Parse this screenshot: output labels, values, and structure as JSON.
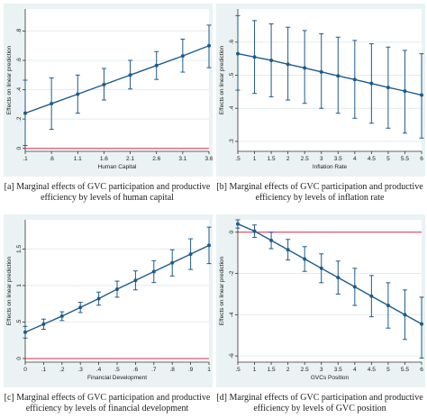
{
  "chart_data": [
    {
      "type": "line",
      "ylabel": "Effects on linear prediction",
      "xlabel": "Human Capital",
      "x_ticks": [
        ".1",
        ".6",
        "1.1",
        "1.6",
        "2.1",
        "2.6",
        "3.1",
        "3.6"
      ],
      "xlim": [
        0.1,
        3.6
      ],
      "ylim": [
        -0.02,
        0.95
      ],
      "y_ticks": [
        0,
        0.2,
        0.4,
        0.6,
        0.8
      ],
      "y_tick_labels": [
        "0",
        ".2",
        ".4",
        ".6",
        ".8"
      ],
      "reference_line": 0,
      "series": [
        {
          "x": [
            0.1,
            0.6,
            1.1,
            1.6,
            2.1,
            2.6,
            3.1,
            3.6
          ],
          "y": [
            0.24,
            0.305,
            0.37,
            0.435,
            0.5,
            0.565,
            0.63,
            0.7
          ],
          "lower": [
            0.02,
            0.13,
            0.24,
            0.33,
            0.405,
            0.47,
            0.52,
            0.55
          ],
          "upper": [
            0.465,
            0.48,
            0.5,
            0.545,
            0.6,
            0.66,
            0.745,
            0.84
          ]
        }
      ],
      "caption": "[a] Marginal effects of GVC participation and productive efficiency by levels of human capital"
    },
    {
      "type": "line",
      "ylabel": "Effects on linear prediction",
      "xlabel": "Inflation Rate",
      "x_ticks": [
        ".5",
        "1",
        "1.5",
        "2",
        "2.5",
        "3",
        "3.5",
        "4",
        "4.5",
        "5",
        "5.5",
        "6"
      ],
      "xlim": [
        0.5,
        6
      ],
      "ylim": [
        0.27,
        0.7
      ],
      "y_ticks": [
        0.3,
        0.4,
        0.5,
        0.6
      ],
      "y_tick_labels": [
        ".3",
        ".4",
        ".5",
        ".6"
      ],
      "series": [
        {
          "x": [
            0.5,
            1,
            1.5,
            2,
            2.5,
            3,
            3.5,
            4,
            4.5,
            5,
            5.5,
            6
          ],
          "y": [
            0.565,
            0.555,
            0.545,
            0.533,
            0.522,
            0.51,
            0.498,
            0.487,
            0.475,
            0.463,
            0.452,
            0.44
          ],
          "lower": [
            0.455,
            0.445,
            0.435,
            0.425,
            0.415,
            0.4,
            0.385,
            0.37,
            0.355,
            0.34,
            0.325,
            0.31
          ],
          "upper": [
            0.68,
            0.665,
            0.655,
            0.645,
            0.635,
            0.625,
            0.615,
            0.605,
            0.595,
            0.585,
            0.575,
            0.565
          ]
        }
      ],
      "caption": "[b] Marginal effects of GVC participation and productive efficiency by levels of inflation rate"
    },
    {
      "type": "line",
      "ylabel": "Effects on linear prediction",
      "xlabel": "Financial Development",
      "x_ticks": [
        "0",
        ".1",
        ".2",
        ".3",
        ".4",
        ".5",
        ".6",
        ".7",
        ".8",
        ".9",
        "1"
      ],
      "xlim": [
        0,
        1
      ],
      "ylim": [
        -0.05,
        1.9
      ],
      "y_ticks": [
        0,
        0.5,
        1,
        1.5
      ],
      "y_tick_labels": [
        "0",
        ".5",
        "1",
        "1.5"
      ],
      "reference_line": 0,
      "series": [
        {
          "x": [
            0,
            0.1,
            0.2,
            0.3,
            0.4,
            0.5,
            0.6,
            0.7,
            0.8,
            0.9,
            1
          ],
          "y": [
            0.36,
            0.47,
            0.58,
            0.7,
            0.82,
            0.95,
            1.07,
            1.19,
            1.31,
            1.43,
            1.55
          ],
          "lower": [
            0.28,
            0.4,
            0.52,
            0.63,
            0.73,
            0.84,
            0.94,
            1.04,
            1.13,
            1.22,
            1.3
          ],
          "upper": [
            0.44,
            0.54,
            0.64,
            0.77,
            0.91,
            1.06,
            1.2,
            1.34,
            1.49,
            1.64,
            1.8
          ]
        }
      ],
      "caption": "[c] Marginal effects of GVC participation and productive efficiency by levels of financial development"
    },
    {
      "type": "line",
      "ylabel": "Effects on linear prediction",
      "xlabel": "GVCs Position",
      "x_ticks": [
        ".5",
        "1",
        "1.5",
        "2",
        "2.5",
        "3",
        "3.5",
        "4",
        "4.5",
        "5",
        "5.5",
        "6"
      ],
      "xlim": [
        0.5,
        6
      ],
      "ylim": [
        -6.3,
        0.6
      ],
      "y_ticks": [
        0,
        -2,
        -4,
        -6
      ],
      "y_tick_labels": [
        "0",
        "-2",
        "-4",
        "-6"
      ],
      "reference_line": 0,
      "series": [
        {
          "x": [
            0.5,
            1,
            1.5,
            2,
            2.5,
            3,
            3.5,
            4,
            4.5,
            5,
            5.5,
            6
          ],
          "y": [
            0.4,
            0.05,
            -0.4,
            -0.85,
            -1.3,
            -1.75,
            -2.2,
            -2.65,
            -3.1,
            -3.55,
            -4.0,
            -4.45
          ],
          "lower": [
            0.2,
            -0.25,
            -0.8,
            -1.35,
            -1.9,
            -2.45,
            -3.0,
            -3.55,
            -4.1,
            -4.65,
            -5.2,
            -6.1
          ],
          "upper": [
            0.6,
            0.35,
            0.0,
            -0.35,
            -0.7,
            -1.05,
            -1.4,
            -1.75,
            -2.1,
            -2.45,
            -2.8,
            -3.15
          ]
        }
      ],
      "caption": "[d] Marginal effects of GVC participation and productive efficiency by levels of GVC position"
    }
  ]
}
